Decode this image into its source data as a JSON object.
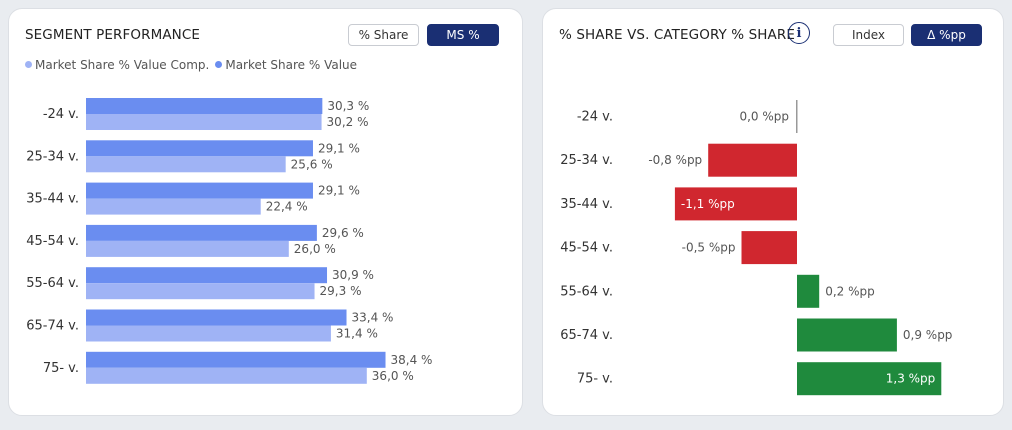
{
  "left_panel": {
    "title": "SEGMENT PERFORMANCE",
    "buttons": [
      {
        "label": "% Share",
        "active": false
      },
      {
        "label": "MS %",
        "active": true
      }
    ],
    "legend": [
      {
        "label": "Market Share % Value Comp.",
        "color": "#9fb3f5"
      },
      {
        "label": "Market Share % Value",
        "color": "#6a8df0"
      }
    ]
  },
  "right_panel": {
    "title": "% SHARE VS. CATEGORY % SHARE",
    "info_icon": "info-icon",
    "buttons": [
      {
        "label": "Index",
        "active": false
      },
      {
        "label": "Δ %pp",
        "active": true
      }
    ]
  },
  "colors": {
    "series_value": "#6a8df0",
    "series_comp": "#9fb3f5",
    "negative": "#d0272f",
    "positive": "#1f8a3d"
  },
  "chart_data": [
    {
      "type": "bar",
      "orientation": "horizontal",
      "title": "SEGMENT PERFORMANCE",
      "categories": [
        "-24 v.",
        "25-34 v.",
        "35-44 v.",
        "45-54 v.",
        "55-64 v.",
        "65-74 v.",
        "75- v."
      ],
      "series": [
        {
          "name": "Market Share % Value",
          "values": [
            30.3,
            29.1,
            29.1,
            29.6,
            30.9,
            33.4,
            38.4
          ],
          "labels": [
            "30,3 %",
            "29,1 %",
            "29,1 %",
            "29,6 %",
            "30,9 %",
            "33,4 %",
            "38,4 %"
          ]
        },
        {
          "name": "Market Share % Value Comp.",
          "values": [
            30.2,
            25.6,
            22.4,
            26.0,
            29.3,
            31.4,
            36.0
          ],
          "labels": [
            "30,2 %",
            "25,6 %",
            "22,4 %",
            "26,0 %",
            "29,3 %",
            "31,4 %",
            "36,0 %"
          ]
        }
      ],
      "xlim": [
        0,
        50
      ]
    },
    {
      "type": "bar",
      "orientation": "horizontal",
      "title": "% SHARE VS. CATEGORY % SHARE",
      "categories": [
        "-24 v.",
        "25-34 v.",
        "35-44 v.",
        "45-54 v.",
        "55-64 v.",
        "65-74 v.",
        "75- v."
      ],
      "values": [
        0.0,
        -0.8,
        -1.1,
        -0.5,
        0.2,
        0.9,
        1.3
      ],
      "labels": [
        "0,0 %pp",
        "-0,8 %pp",
        "-1,1 %pp",
        "-0,5 %pp",
        "0,2 %pp",
        "0,9 %pp",
        "1,3 %pp"
      ],
      "xlim": [
        -1.1,
        1.3
      ]
    }
  ]
}
